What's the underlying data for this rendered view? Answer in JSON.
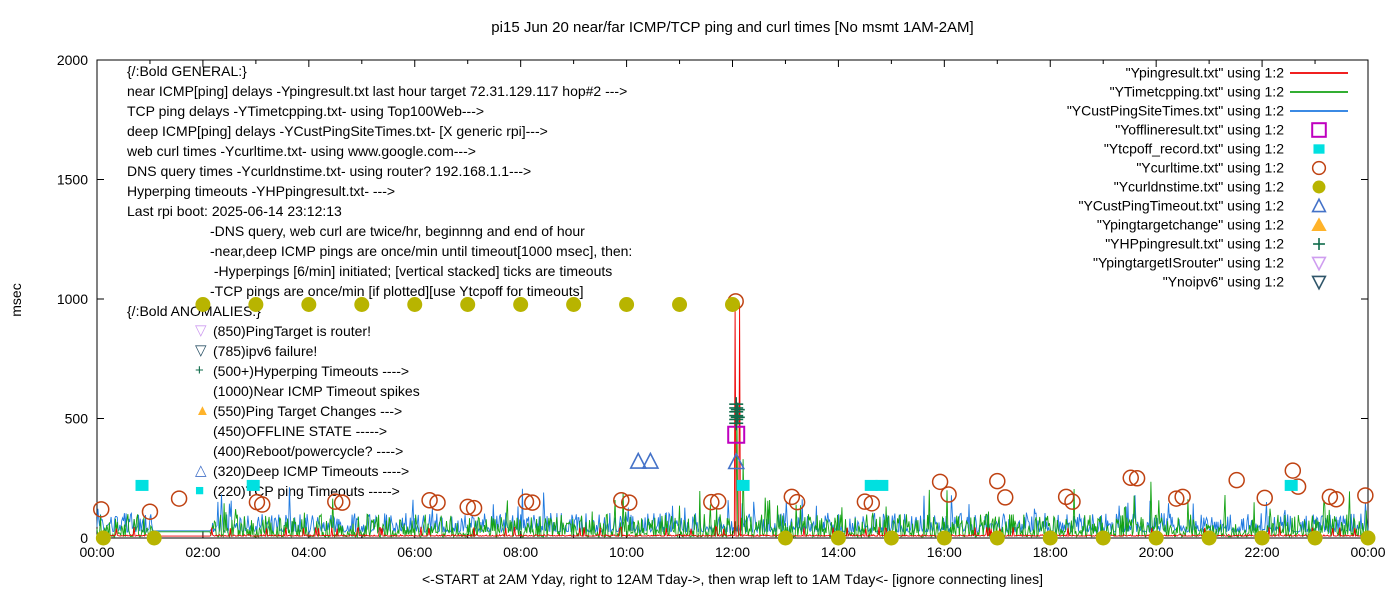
{
  "title": "pi15 Jun 20  near/far ICMP/TCP ping and curl times [No msmt 1AM-2AM]",
  "axes": {
    "ylabel": "msec",
    "xlabel": "<-START at 2AM Yday, right to 12AM Tday->, then wrap left to 1AM Tday<- [ignore connecting lines]",
    "y_ticks": [
      0,
      500,
      1000,
      1500,
      2000
    ],
    "x_tick_labels": [
      "00:00",
      "02:00",
      "04:00",
      "06:00",
      "08:00",
      "10:00",
      "12:00",
      "14:00",
      "16:00",
      "18:00",
      "20:00",
      "22:00",
      "00:00"
    ]
  },
  "legend": {
    "entries": [
      {
        "label": "\"Ypingresult.txt\" using 1:2",
        "marker": "line",
        "color": "#ee0000"
      },
      {
        "label": "\"YTimetcpping.txt\" using 1:2",
        "marker": "line",
        "color": "#14a314"
      },
      {
        "label": "\"YCustPingSiteTimes.txt\" using 1:2",
        "marker": "line",
        "color": "#1f7ae0"
      },
      {
        "label": "\"Yofflineresult.txt\" using 1:2",
        "marker": "open-square",
        "color": "#bf00bf"
      },
      {
        "label": "\"Ytcpoff_record.txt\" using 1:2",
        "marker": "filled-square",
        "color": "#00e0e0"
      },
      {
        "label": "\"Ycurltime.txt\" using 1:2",
        "marker": "open-circle",
        "color": "#bf4212"
      },
      {
        "label": "\"Ycurldnstime.txt\" using 1:2",
        "marker": "filled-circle",
        "color": "#b8b400"
      },
      {
        "label": "\"YCustPingTimeout.txt\" using 1:2",
        "marker": "open-triangle-up",
        "color": "#4472c8"
      },
      {
        "label": "\"Ypingtargetchange\" using 1:2",
        "marker": "filled-triangle-up",
        "color": "#ffb32a"
      },
      {
        "label": "\"YHPpingresult.txt\" using 1:2",
        "marker": "plus",
        "color": "#0e6b4a"
      },
      {
        "label": "\"YpingtargetISrouter\" using 1:2",
        "marker": "open-triangle-down",
        "color": "#cf9ef0"
      },
      {
        "label": "\"Ynoipv6\" using 1:2",
        "marker": "open-triangle-down",
        "color": "#30566a"
      }
    ]
  },
  "annotations": {
    "general": {
      "heading": "{/:Bold GENERAL:}",
      "lines": [
        "near ICMP[ping] delays -Ypingresult.txt last hour target 72.31.129.117 hop#2 --->",
        "TCP ping delays -YTimetcpping.txt- using Top100Web--->",
        "deep ICMP[ping] delays -YCustPingSiteTimes.txt- [X generic rpi]--->",
        "web curl times -Ycurltime.txt- using www.google.com--->",
        "DNS query times -Ycurldnstime.txt- using router? 192.168.1.1--->",
        "Hyperping timeouts -YHPpingresult.txt- --->",
        "Last rpi boot: 2025-06-14 23:12:13"
      ],
      "notes": [
        "-DNS query, web curl are twice/hr, beginnng and end of hour",
        "-near,deep ICMP pings are once/min until timeout[1000 msec], then:",
        " -Hyperpings [6/min] initiated; [vertical stacked] ticks are timeouts",
        "-TCP pings are once/min [if plotted][use Ytcpoff for timeouts]"
      ]
    },
    "anomalies": {
      "heading": "{/:Bold ANOMALIES:}",
      "items": [
        {
          "icon": "open-triangle-down",
          "color": "#cf9ef0",
          "text": "(850)PingTarget is router!"
        },
        {
          "icon": "open-triangle-down",
          "color": "#30566a",
          "text": "(785)ipv6 failure!"
        },
        {
          "icon": "plus",
          "color": "#0e6b4a",
          "text": "(500+)Hyperping Timeouts ---->"
        },
        {
          "icon": "none",
          "color": "",
          "text": "(1000)Near ICMP Timeout spikes"
        },
        {
          "icon": "filled-triangle-up",
          "color": "#ffb32a",
          "text": "(550)Ping Target Changes --->"
        },
        {
          "icon": "none",
          "color": "",
          "text": "(450)OFFLINE STATE ----->"
        },
        {
          "icon": "none",
          "color": "",
          "text": "(400)Reboot/powercycle? ---->"
        },
        {
          "icon": "open-triangle-up",
          "color": "#4472c8",
          "text": "(320)Deep ICMP Timeouts ---->"
        },
        {
          "icon": "filled-square",
          "color": "#00e0e0",
          "text": "(220)TCP ping Timeouts ----->"
        }
      ]
    }
  },
  "chart_data": {
    "type": "line+scatter",
    "x_unit": "hours",
    "x_range": [
      0,
      24
    ],
    "y_range": [
      0,
      2000
    ],
    "ylabel": "msec",
    "grid": false,
    "legend_position": "top-right-inside",
    "no_measurement_gap_hours": [
      1.05,
      2.15
    ],
    "series": [
      {
        "name": "YCustPingSiteTimes.txt",
        "color": "#1f7ae0",
        "style": "noise-line",
        "baseline_msec": 25,
        "noise_msec": 80,
        "gap_value_msec": 30,
        "seed": 33,
        "spikes": []
      },
      {
        "name": "YTimetcpping.txt",
        "color": "#14a314",
        "style": "noise-line",
        "baseline_msec": 5,
        "noise_msec": 95,
        "gap_value_msec": 26,
        "seed": 22,
        "spikes": [
          [
            4.45,
            165
          ],
          [
            12.08,
            560
          ],
          [
            12.2,
            330
          ],
          [
            16.05,
            200
          ],
          [
            18.45,
            205
          ],
          [
            19.9,
            235
          ],
          [
            21.3,
            180
          ],
          [
            23.65,
            195
          ]
        ]
      },
      {
        "name": "Ypingresult.txt",
        "color": "#ee0000",
        "style": "noise-line",
        "baseline_msec": 8,
        "noise_msec": 6,
        "gap_value_msec": 8,
        "seed": 11,
        "spikes": [
          [
            12.05,
            990
          ],
          [
            12.13,
            980
          ]
        ]
      }
    ],
    "scatter": [
      {
        "name": "Ycurltime.txt",
        "marker": "open-circle",
        "color": "#bf4212",
        "points": [
          [
            0.08,
            120
          ],
          [
            1.0,
            110
          ],
          [
            1.55,
            165
          ],
          [
            3.02,
            150
          ],
          [
            3.12,
            140
          ],
          [
            4.5,
            152
          ],
          [
            4.63,
            148
          ],
          [
            6.28,
            158
          ],
          [
            6.43,
            148
          ],
          [
            7.0,
            130
          ],
          [
            7.12,
            125
          ],
          [
            8.1,
            152
          ],
          [
            8.22,
            148
          ],
          [
            9.9,
            158
          ],
          [
            10.05,
            148
          ],
          [
            11.6,
            150
          ],
          [
            11.73,
            153
          ],
          [
            12.06,
            990
          ],
          [
            13.12,
            172
          ],
          [
            13.22,
            150
          ],
          [
            14.5,
            152
          ],
          [
            14.63,
            145
          ],
          [
            15.92,
            235
          ],
          [
            16.08,
            182
          ],
          [
            17.0,
            238
          ],
          [
            17.15,
            170
          ],
          [
            18.3,
            172
          ],
          [
            18.42,
            152
          ],
          [
            19.52,
            252
          ],
          [
            19.64,
            250
          ],
          [
            20.38,
            165
          ],
          [
            20.5,
            172
          ],
          [
            21.52,
            242
          ],
          [
            22.05,
            168
          ],
          [
            22.58,
            282
          ],
          [
            22.68,
            215
          ],
          [
            23.28,
            172
          ],
          [
            23.4,
            162
          ],
          [
            23.95,
            178
          ]
        ]
      },
      {
        "name": "Ycurldnstime.txt",
        "marker": "filled-circle",
        "color": "#b8b400",
        "points": [
          [
            2,
            977
          ],
          [
            3,
            977
          ],
          [
            4,
            977
          ],
          [
            5,
            977
          ],
          [
            6,
            977
          ],
          [
            7,
            977
          ],
          [
            8,
            977
          ],
          [
            9,
            977
          ],
          [
            10,
            977
          ],
          [
            11,
            977
          ],
          [
            12,
            977
          ],
          [
            0.12,
            0
          ],
          [
            1.08,
            0
          ],
          [
            13,
            0
          ],
          [
            14,
            0
          ],
          [
            15,
            0
          ],
          [
            16,
            0
          ],
          [
            17,
            0
          ],
          [
            18,
            0
          ],
          [
            19,
            0
          ],
          [
            20,
            0
          ],
          [
            21,
            0
          ],
          [
            22,
            0
          ],
          [
            23,
            0
          ],
          [
            24,
            0
          ]
        ]
      },
      {
        "name": "Ytcpoff_record.txt",
        "marker": "filled-square",
        "color": "#00e0e0",
        "points": [
          [
            0.85,
            220
          ],
          [
            2.95,
            220
          ],
          [
            12.2,
            220
          ],
          [
            14.62,
            220
          ],
          [
            14.82,
            220
          ],
          [
            22.55,
            220
          ]
        ]
      },
      {
        "name": "Yofflineresult.txt",
        "marker": "open-square",
        "color": "#bf00bf",
        "points": [
          [
            12.07,
            432
          ]
        ]
      },
      {
        "name": "YCustPingTimeout.txt",
        "marker": "open-triangle-up",
        "color": "#4472c8",
        "points": [
          [
            10.22,
            320
          ],
          [
            10.45,
            320
          ],
          [
            12.07,
            318
          ]
        ]
      },
      {
        "name": "YHPpingresult.txt",
        "marker": "plus",
        "color": "#0e6b4a",
        "points": [
          [
            12.07,
            480
          ],
          [
            12.07,
            496
          ],
          [
            12.07,
            512
          ],
          [
            12.07,
            528
          ],
          [
            12.07,
            544
          ],
          [
            12.07,
            560
          ],
          [
            12.1,
            505
          ],
          [
            12.1,
            537
          ]
        ]
      }
    ]
  }
}
